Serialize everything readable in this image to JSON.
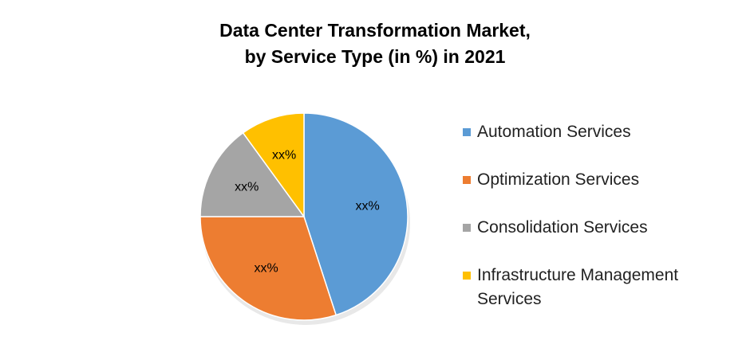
{
  "chart_data": {
    "type": "pie",
    "title": [
      "Data Center Transformation Market,",
      "by Service Type (in %) in 2021"
    ],
    "categories": [
      "Automation Services",
      "Optimization Services",
      "Consolidation Services",
      "Infrastructure Management Services"
    ],
    "values": [
      45,
      30,
      15,
      10
    ],
    "value_labels": [
      "xx%",
      "xx%",
      "xx%",
      "xx%"
    ],
    "colors": [
      "#5b9bd5",
      "#ed7d31",
      "#a5a5a5",
      "#ffc000"
    ],
    "legend": "right"
  }
}
